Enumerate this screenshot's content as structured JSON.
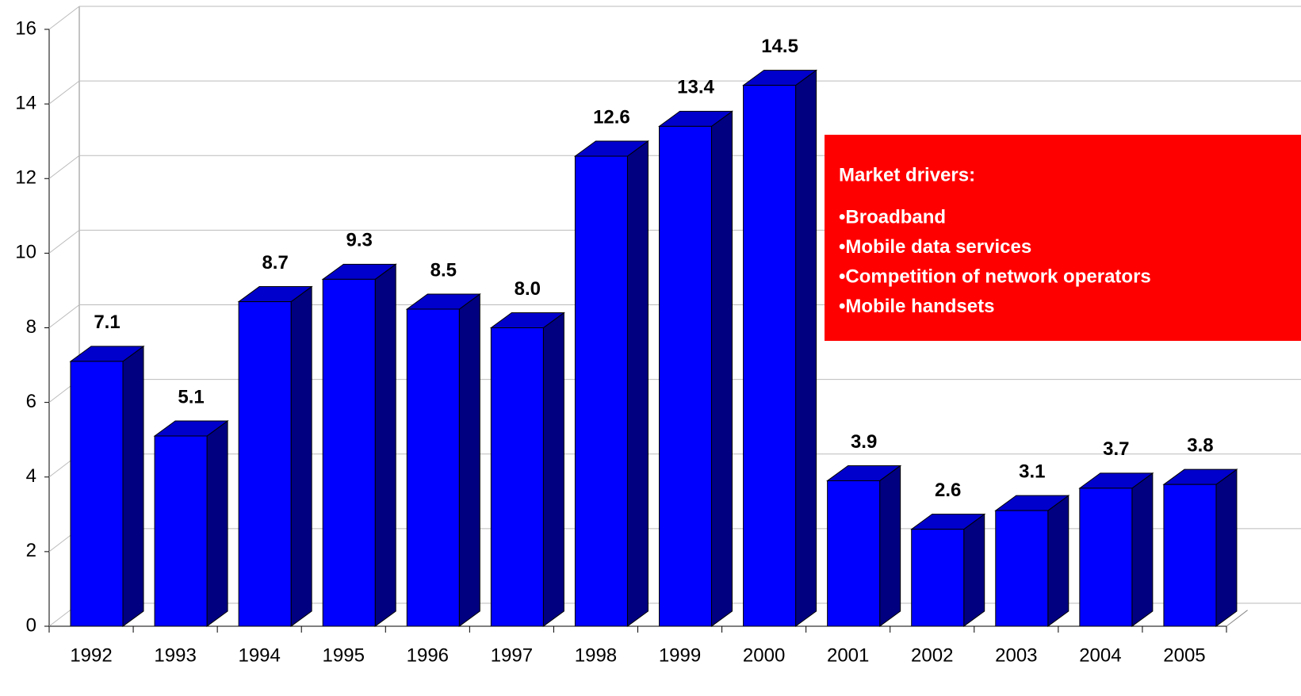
{
  "chart_data": {
    "type": "bar3d",
    "categories": [
      "1992",
      "1993",
      "1994",
      "1995",
      "1996",
      "1997",
      "1998",
      "1999",
      "2000",
      "2001",
      "2002",
      "2003",
      "2004",
      "2005"
    ],
    "values": [
      7.1,
      5.1,
      8.7,
      9.3,
      8.5,
      8.0,
      12.6,
      13.4,
      14.5,
      3.9,
      2.6,
      3.1,
      3.7,
      3.8
    ],
    "value_labels": [
      "7.1",
      "5.1",
      "8.7",
      "9.3",
      "8.5",
      "8.0",
      "12.6",
      "13.4",
      "14.5",
      "3.9",
      "2.6",
      "3.1",
      "3.7",
      "3.8"
    ],
    "color": "#0000ff",
    "ylim": [
      0,
      16
    ],
    "yticks": [
      0,
      2,
      4,
      6,
      8,
      10,
      12,
      14,
      16
    ],
    "grid": true,
    "annotation": {
      "title": "Market drivers:",
      "items": [
        "•Broadband",
        "•Mobile data services",
        "•Competition of network operators",
        "•Mobile handsets"
      ]
    }
  }
}
